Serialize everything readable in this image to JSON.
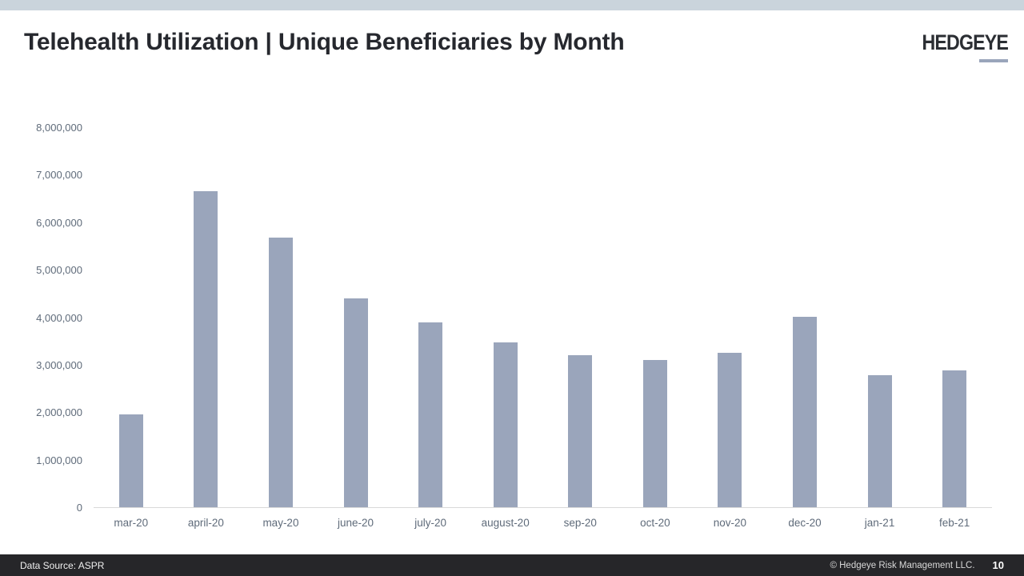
{
  "header": {
    "title": "Telehealth Utilization | Unique Beneficiaries by Month",
    "logo_text": "HEDGEYE"
  },
  "footer": {
    "data_source": "Data Source: ASPR",
    "copyright": "© Hedgeye Risk Management LLC.",
    "page_number": "10"
  },
  "colors": {
    "banner": "#cad4dc",
    "bar": "#9aa5bb",
    "logo_underline": "#9aa5bb",
    "title_text": "#26282e",
    "axis_text": "#5f6b7a",
    "footer_bg": "#262629"
  },
  "chart_data": {
    "type": "bar",
    "title": "Telehealth Utilization | Unique Beneficiaries by Month",
    "xlabel": "",
    "ylabel": "",
    "ylim": [
      0,
      8000000
    ],
    "grid": false,
    "legend": false,
    "categories": [
      "mar-20",
      "april-20",
      "may-20",
      "june-20",
      "july-20",
      "august-20",
      "sep-20",
      "oct-20",
      "nov-20",
      "dec-20",
      "jan-21",
      "feb-21"
    ],
    "values": [
      1960000,
      6670000,
      5690000,
      4410000,
      3900000,
      3470000,
      3210000,
      3100000,
      3250000,
      4010000,
      2790000,
      2880000
    ],
    "y_ticks": [
      "8,000,000",
      "7,000,000",
      "6,000,000",
      "5,000,000",
      "4,000,000",
      "3,000,000",
      "2,000,000",
      "1,000,000",
      "0"
    ]
  }
}
